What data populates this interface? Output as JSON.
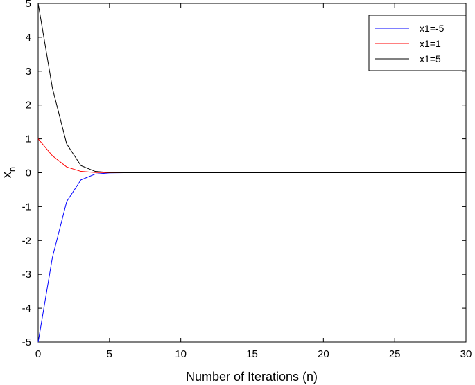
{
  "chart_data": {
    "type": "line",
    "title": "",
    "xlabel": "Number of Iterations (n)",
    "ylabel": "x",
    "ylabel_subscript": "n",
    "xlim": [
      0,
      30
    ],
    "ylim": [
      -5,
      5
    ],
    "xticks": [
      0,
      5,
      10,
      15,
      20,
      25,
      30
    ],
    "yticks": [
      -5,
      -4,
      -3,
      -2,
      -1,
      0,
      1,
      2,
      3,
      4,
      5
    ],
    "grid": false,
    "legend_position": "top-right",
    "x": [
      0,
      1,
      2,
      3,
      4,
      5,
      6,
      7,
      8,
      9,
      10,
      11,
      12,
      13,
      14,
      15,
      16,
      17,
      18,
      19,
      20,
      21,
      22,
      23,
      24,
      25,
      26,
      27,
      28,
      29,
      30
    ],
    "series": [
      {
        "name": "x1=-5",
        "color": "#0000ff",
        "values": [
          -5,
          -2.5,
          -0.85,
          -0.21,
          -0.04,
          -0.006,
          -0.001,
          0,
          0,
          0,
          0,
          0,
          0,
          0,
          0,
          0,
          0,
          0,
          0,
          0,
          0,
          0,
          0,
          0,
          0,
          0,
          0,
          0,
          0,
          0,
          0
        ]
      },
      {
        "name": "x1=1",
        "color": "#ff0000",
        "values": [
          1,
          0.5,
          0.17,
          0.04,
          0.008,
          0.001,
          0,
          0,
          0,
          0,
          0,
          0,
          0,
          0,
          0,
          0,
          0,
          0,
          0,
          0,
          0,
          0,
          0,
          0,
          0,
          0,
          0,
          0,
          0,
          0,
          0
        ]
      },
      {
        "name": "x1=5",
        "color": "#000000",
        "values": [
          5,
          2.5,
          0.85,
          0.21,
          0.04,
          0.006,
          0.001,
          0,
          0,
          0,
          0,
          0,
          0,
          0,
          0,
          0,
          0,
          0,
          0,
          0,
          0,
          0,
          0,
          0,
          0,
          0,
          0,
          0,
          0,
          0,
          0
        ]
      }
    ]
  }
}
